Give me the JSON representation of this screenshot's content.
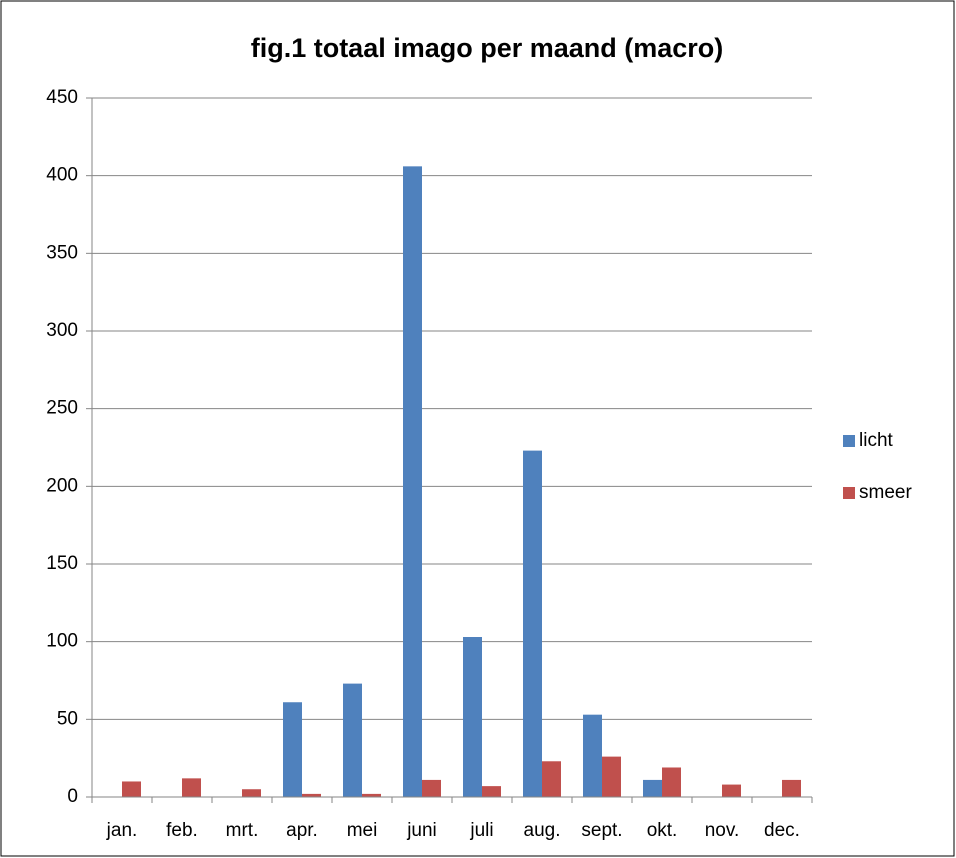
{
  "chart_data": {
    "type": "bar",
    "title": "fig.1 totaal imago per maand (macro)",
    "categories": [
      "jan.",
      "feb.",
      "mrt.",
      "apr.",
      "mei",
      "juni",
      "juli",
      "aug.",
      "sept.",
      "okt.",
      "nov.",
      "dec."
    ],
    "series": [
      {
        "name": "licht",
        "color": "#4f81bd",
        "values": [
          0,
          0,
          0,
          61,
          73,
          406,
          103,
          223,
          53,
          11,
          0,
          0
        ]
      },
      {
        "name": "smeer",
        "color": "#c0504d",
        "values": [
          10,
          12,
          5,
          2,
          2,
          11,
          7,
          23,
          26,
          19,
          8,
          11
        ]
      }
    ],
    "ylim": [
      0,
      450
    ],
    "yticks": [
      0,
      50,
      100,
      150,
      200,
      250,
      300,
      350,
      400,
      450
    ],
    "grid": true,
    "legend": "right"
  }
}
